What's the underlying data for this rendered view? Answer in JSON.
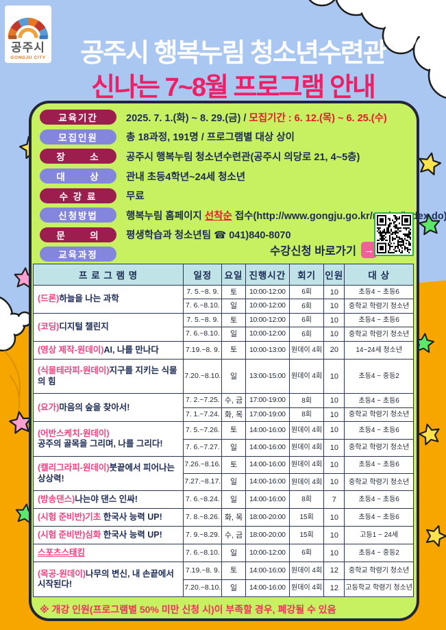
{
  "colors": {
    "sky": "#a9c7f1",
    "orange": "#f7a600",
    "panel_green": "#c8f162",
    "panel_border": "#23263a",
    "pill_maroon": "#9c1e4e",
    "pill_purple": "#8486de",
    "navy_text": "#1d2c55",
    "accent_pink": "#f01e64",
    "accent_red": "#e8192c",
    "table_header": "#bfe3e7",
    "cta_button_pink": "#f0609b",
    "qr_border_green": "#26b14a",
    "star_yellow": "#ffe34d",
    "star_pink": "#ff9fd0",
    "star_green": "#5ce86b"
  },
  "logo": {
    "name_ko": "공주시",
    "name_en": "GONGJU CITY",
    "icon": "arch-gate-icon"
  },
  "header": {
    "title_line1": "공주시 행복누림 청소년수련관",
    "title_line2": "신나는 7~8월 프로그램 안내"
  },
  "info": {
    "rows": [
      {
        "label": "교육기간",
        "style": "maroon",
        "segments": [
          {
            "t": "2025. 7. 1.(화) ~ 8. 29.(금) / "
          },
          {
            "t": "모집기간 : 6. 12.(목) ~ 6. 25.(수)",
            "c": "red"
          }
        ]
      },
      {
        "label": "모집인원",
        "style": "purple",
        "segments": [
          {
            "t": "총 18과정, 191명 / 프로그램별 대상 상이"
          }
        ]
      },
      {
        "label": "장      소",
        "style": "maroon",
        "segments": [
          {
            "t": "공주시 행복누림 청소년수련관(공주시 의당로 21, 4~5층)"
          }
        ]
      },
      {
        "label": "대      상",
        "style": "purple",
        "segments": [
          {
            "t": "관내 초등4학년~24세 청소년"
          }
        ]
      },
      {
        "label": "수 강 료",
        "style": "maroon",
        "segments": [
          {
            "t": "무료"
          }
        ]
      },
      {
        "label": "신청방법",
        "style": "purple",
        "segments": [
          {
            "t": "행복누림 홈페이지 "
          },
          {
            "t": "선착순",
            "c": "red-underline"
          },
          {
            "t": " 접수(http://www.gongju.go.kr/nurim/index.do)"
          }
        ]
      },
      {
        "label": "문      의",
        "style": "maroon",
        "segments": [
          {
            "t": "평생학습과 청소년팀 ☎ 041)840-8070"
          }
        ]
      },
      {
        "label": "교육과정",
        "style": "purple",
        "segments": []
      }
    ]
  },
  "cta": {
    "label": "수강신청 바로가기",
    "arrow": "→",
    "qr": "qr-code"
  },
  "table": {
    "headers": [
      "프 로 그 램 명",
      "일정",
      "요일",
      "진행시간",
      "회기",
      "인원",
      "대 상"
    ],
    "groups": [
      {
        "prefix": "(드론)",
        "title": "하늘을 나는 과학",
        "multiline": false,
        "underline": false,
        "sessions": [
          {
            "date": "7. 5.~8. 9.",
            "day": "토",
            "time": "10:00-12:00",
            "count": "6회",
            "capacity": "10",
            "target": "초등4 ~ 초등6"
          },
          {
            "date": "7. 6.~8.10.",
            "day": "일",
            "time": "10:00-12:00",
            "count": "6회",
            "capacity": "10",
            "target": "중학교 학령기 청소년"
          }
        ]
      },
      {
        "prefix": "(코딩)",
        "title": "디지털 챌린지",
        "multiline": false,
        "underline": false,
        "sessions": [
          {
            "date": "7. 5.~8. 9.",
            "day": "토",
            "time": "10:00-12:00",
            "count": "6회",
            "capacity": "10",
            "target": "초등4 ~ 초등6"
          },
          {
            "date": "7. 6.~8.10.",
            "day": "일",
            "time": "10:00-12:00",
            "count": "6회",
            "capacity": "10",
            "target": "중학교 학령기 청소년"
          }
        ]
      },
      {
        "prefix": "(영상 제작-원데이)",
        "title": "AI, 나를 만나다",
        "multiline": false,
        "underline": false,
        "sessions": [
          {
            "date": "7.19.~8. 9.",
            "day": "토",
            "time": "10:00-13:00",
            "count": "원데이 4회",
            "capacity": "20",
            "target": "14~24세 청소년"
          }
        ]
      },
      {
        "prefix": "(식물테라피-원데이)",
        "title": "지구를 지키는 식물의 힘",
        "multiline": false,
        "underline": false,
        "sessions": [
          {
            "date": "7.20.~8.10.",
            "day": "일",
            "time": "13:00-15:00",
            "count": "원데이 4회",
            "capacity": "10",
            "target": "초등4 ~ 중등2"
          }
        ]
      },
      {
        "prefix": "(요가)",
        "title": "마음의 숲을 찾아서!",
        "multiline": false,
        "underline": false,
        "sessions": [
          {
            "date": "7. 2.~7.25.",
            "day": "수, 금",
            "time": "17:00-19:00",
            "count": "8회",
            "capacity": "10",
            "target": "초등4 ~ 초등6"
          },
          {
            "date": "7. 1.~7.24.",
            "day": "화, 목",
            "time": "17:00-19:00",
            "count": "8회",
            "capacity": "10",
            "target": "중학교 학령기 청소년"
          }
        ]
      },
      {
        "prefix": "(어반스케치-원데이)",
        "title": "공주의 골목을 그리며, 나를 그리다!",
        "multiline": true,
        "underline": false,
        "sessions": [
          {
            "date": "7. 5.~7.26.",
            "day": "토",
            "time": "14:00-16:00",
            "count": "원데이 4회",
            "capacity": "10",
            "target": "초등4 ~ 초등6"
          },
          {
            "date": "7. 6.~7.27.",
            "day": "일",
            "time": "14:00-16:00",
            "count": "원데이 4회",
            "capacity": "10",
            "target": "중학교 학령기 청소년"
          }
        ]
      },
      {
        "prefix": "(캘리그라피-원데이)",
        "title": "붓끝에서 피어나는 상상력!",
        "multiline": false,
        "underline": false,
        "sessions": [
          {
            "date": "7.26.~8.16.",
            "day": "토",
            "time": "14:00-16:00",
            "count": "원데이 4회",
            "capacity": "10",
            "target": "초등4 ~ 초등6"
          },
          {
            "date": "7.27.~8.17.",
            "day": "일",
            "time": "14:00-16:00",
            "count": "원데이 4회",
            "capacity": "10",
            "target": "중학교 학령기 청소년"
          }
        ]
      },
      {
        "prefix": "(방송댄스)",
        "title": "나는야 댄스 인싸!",
        "multiline": false,
        "underline": false,
        "sessions": [
          {
            "date": "7. 6.~8.24.",
            "day": "일",
            "time": "14:00-16:00",
            "count": "8회",
            "capacity": "7",
            "target": "초등4 ~ 초등6"
          }
        ]
      },
      {
        "prefix": "(시험 준비반)기초",
        "title": " 한국사 능력 UP!",
        "multiline": false,
        "underline": false,
        "sessions": [
          {
            "date": "7. 8.~8.26.",
            "day": "화, 목",
            "time": "18:00-20:00",
            "count": "15회",
            "capacity": "10",
            "target": "초등4 ~ 초등6"
          }
        ]
      },
      {
        "prefix": "(시험 준비반)심화",
        "title": " 한국사 능력 UP!",
        "multiline": false,
        "underline": false,
        "sessions": [
          {
            "date": "7. 9.~8.29.",
            "day": "수, 금",
            "time": "18:00-20:00",
            "count": "15회",
            "capacity": "10",
            "target": "고등1 ~ 24세"
          }
        ]
      },
      {
        "prefix": "스포츠스태킹",
        "title": "",
        "multiline": false,
        "underline": true,
        "sessions": [
          {
            "date": "7. 6.~8.10.",
            "day": "일",
            "time": "10:00-12:00",
            "count": "6회",
            "capacity": "10",
            "target": "초등4 ~ 중등2"
          }
        ]
      },
      {
        "prefix": "(목공-원데이)",
        "title": "나무의 변신, 내 손끝에서 시작된다!",
        "multiline": false,
        "underline": false,
        "sessions": [
          {
            "date": "7.19.~8. 9.",
            "day": "토",
            "time": "14:00-16:00",
            "count": "원데이 4회",
            "capacity": "12",
            "target": "중학교 학령기 청소년"
          },
          {
            "date": "7.20.~8.10.",
            "day": "일",
            "time": "14:00-16:00",
            "count": "원데이 4회",
            "capacity": "12",
            "target": "고등학교 학령기 청소년"
          }
        ]
      }
    ]
  },
  "footer": {
    "note": "※ 개강 인원(프로그램별 50% 미만 신청 시)이 부족할 경우, 폐강될 수 있음"
  }
}
